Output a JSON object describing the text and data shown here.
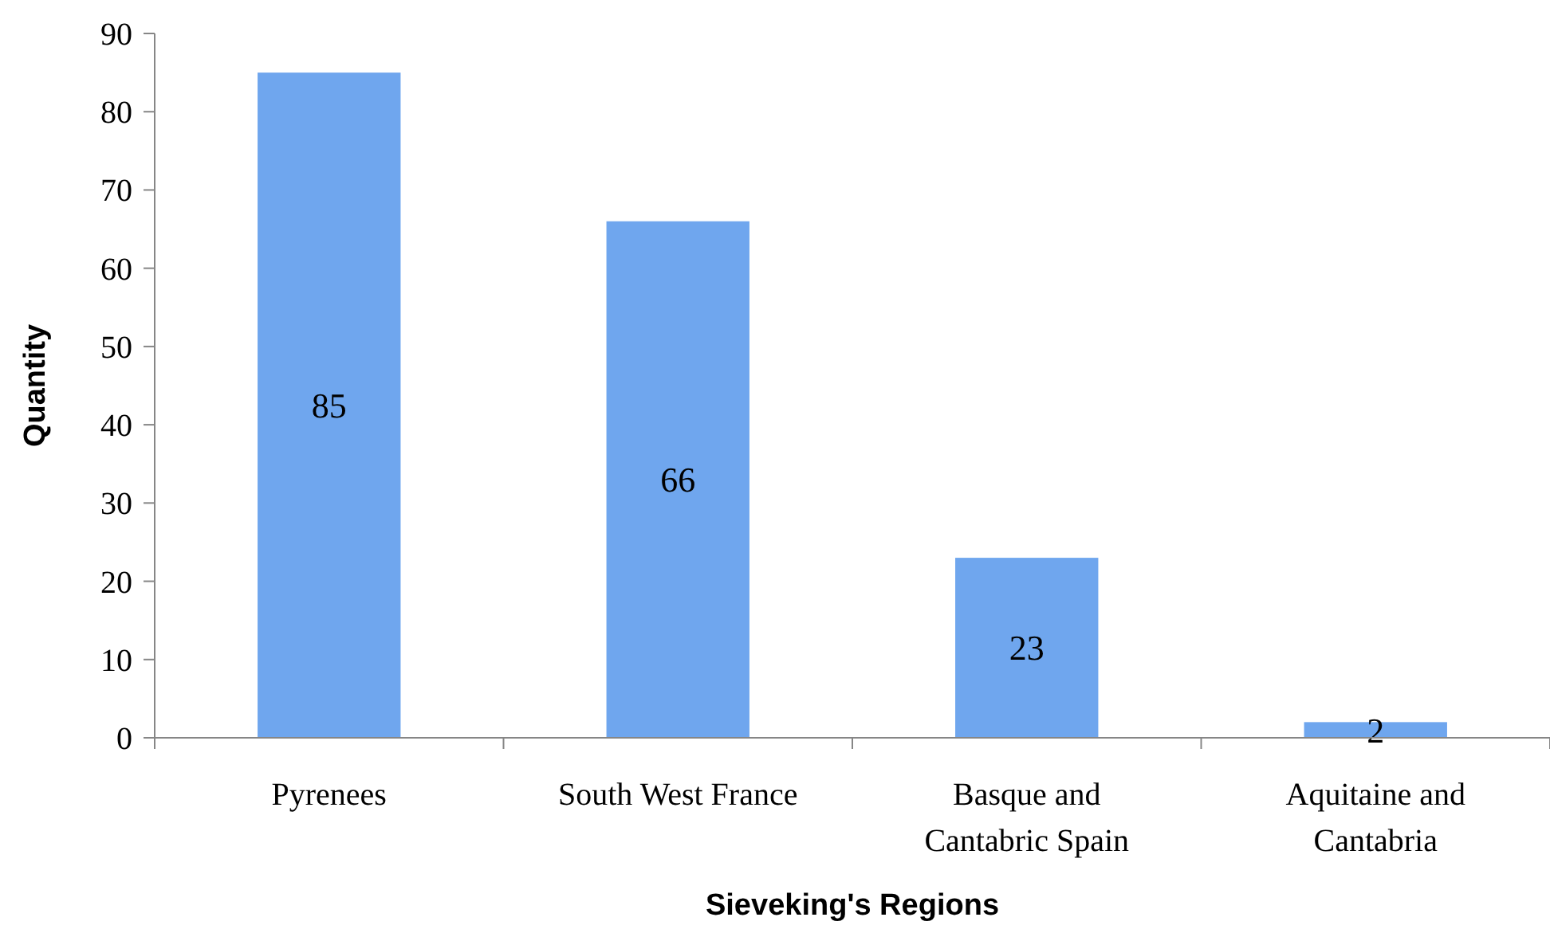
{
  "chart_data": {
    "type": "bar",
    "xlabel": "Sieveking's Regions",
    "ylabel": "Quantity",
    "categories": [
      "Pyrenees",
      "South West France",
      "Basque and Cantabric Spain",
      "Aquitaine and Cantabria"
    ],
    "values": [
      85,
      66,
      23,
      2
    ],
    "color": "#6fa6ee",
    "ylim": [
      0,
      90
    ],
    "yticks": [
      0,
      10,
      20,
      30,
      40,
      50,
      60,
      70,
      80,
      90
    ],
    "grid": false,
    "data_labels": true
  }
}
